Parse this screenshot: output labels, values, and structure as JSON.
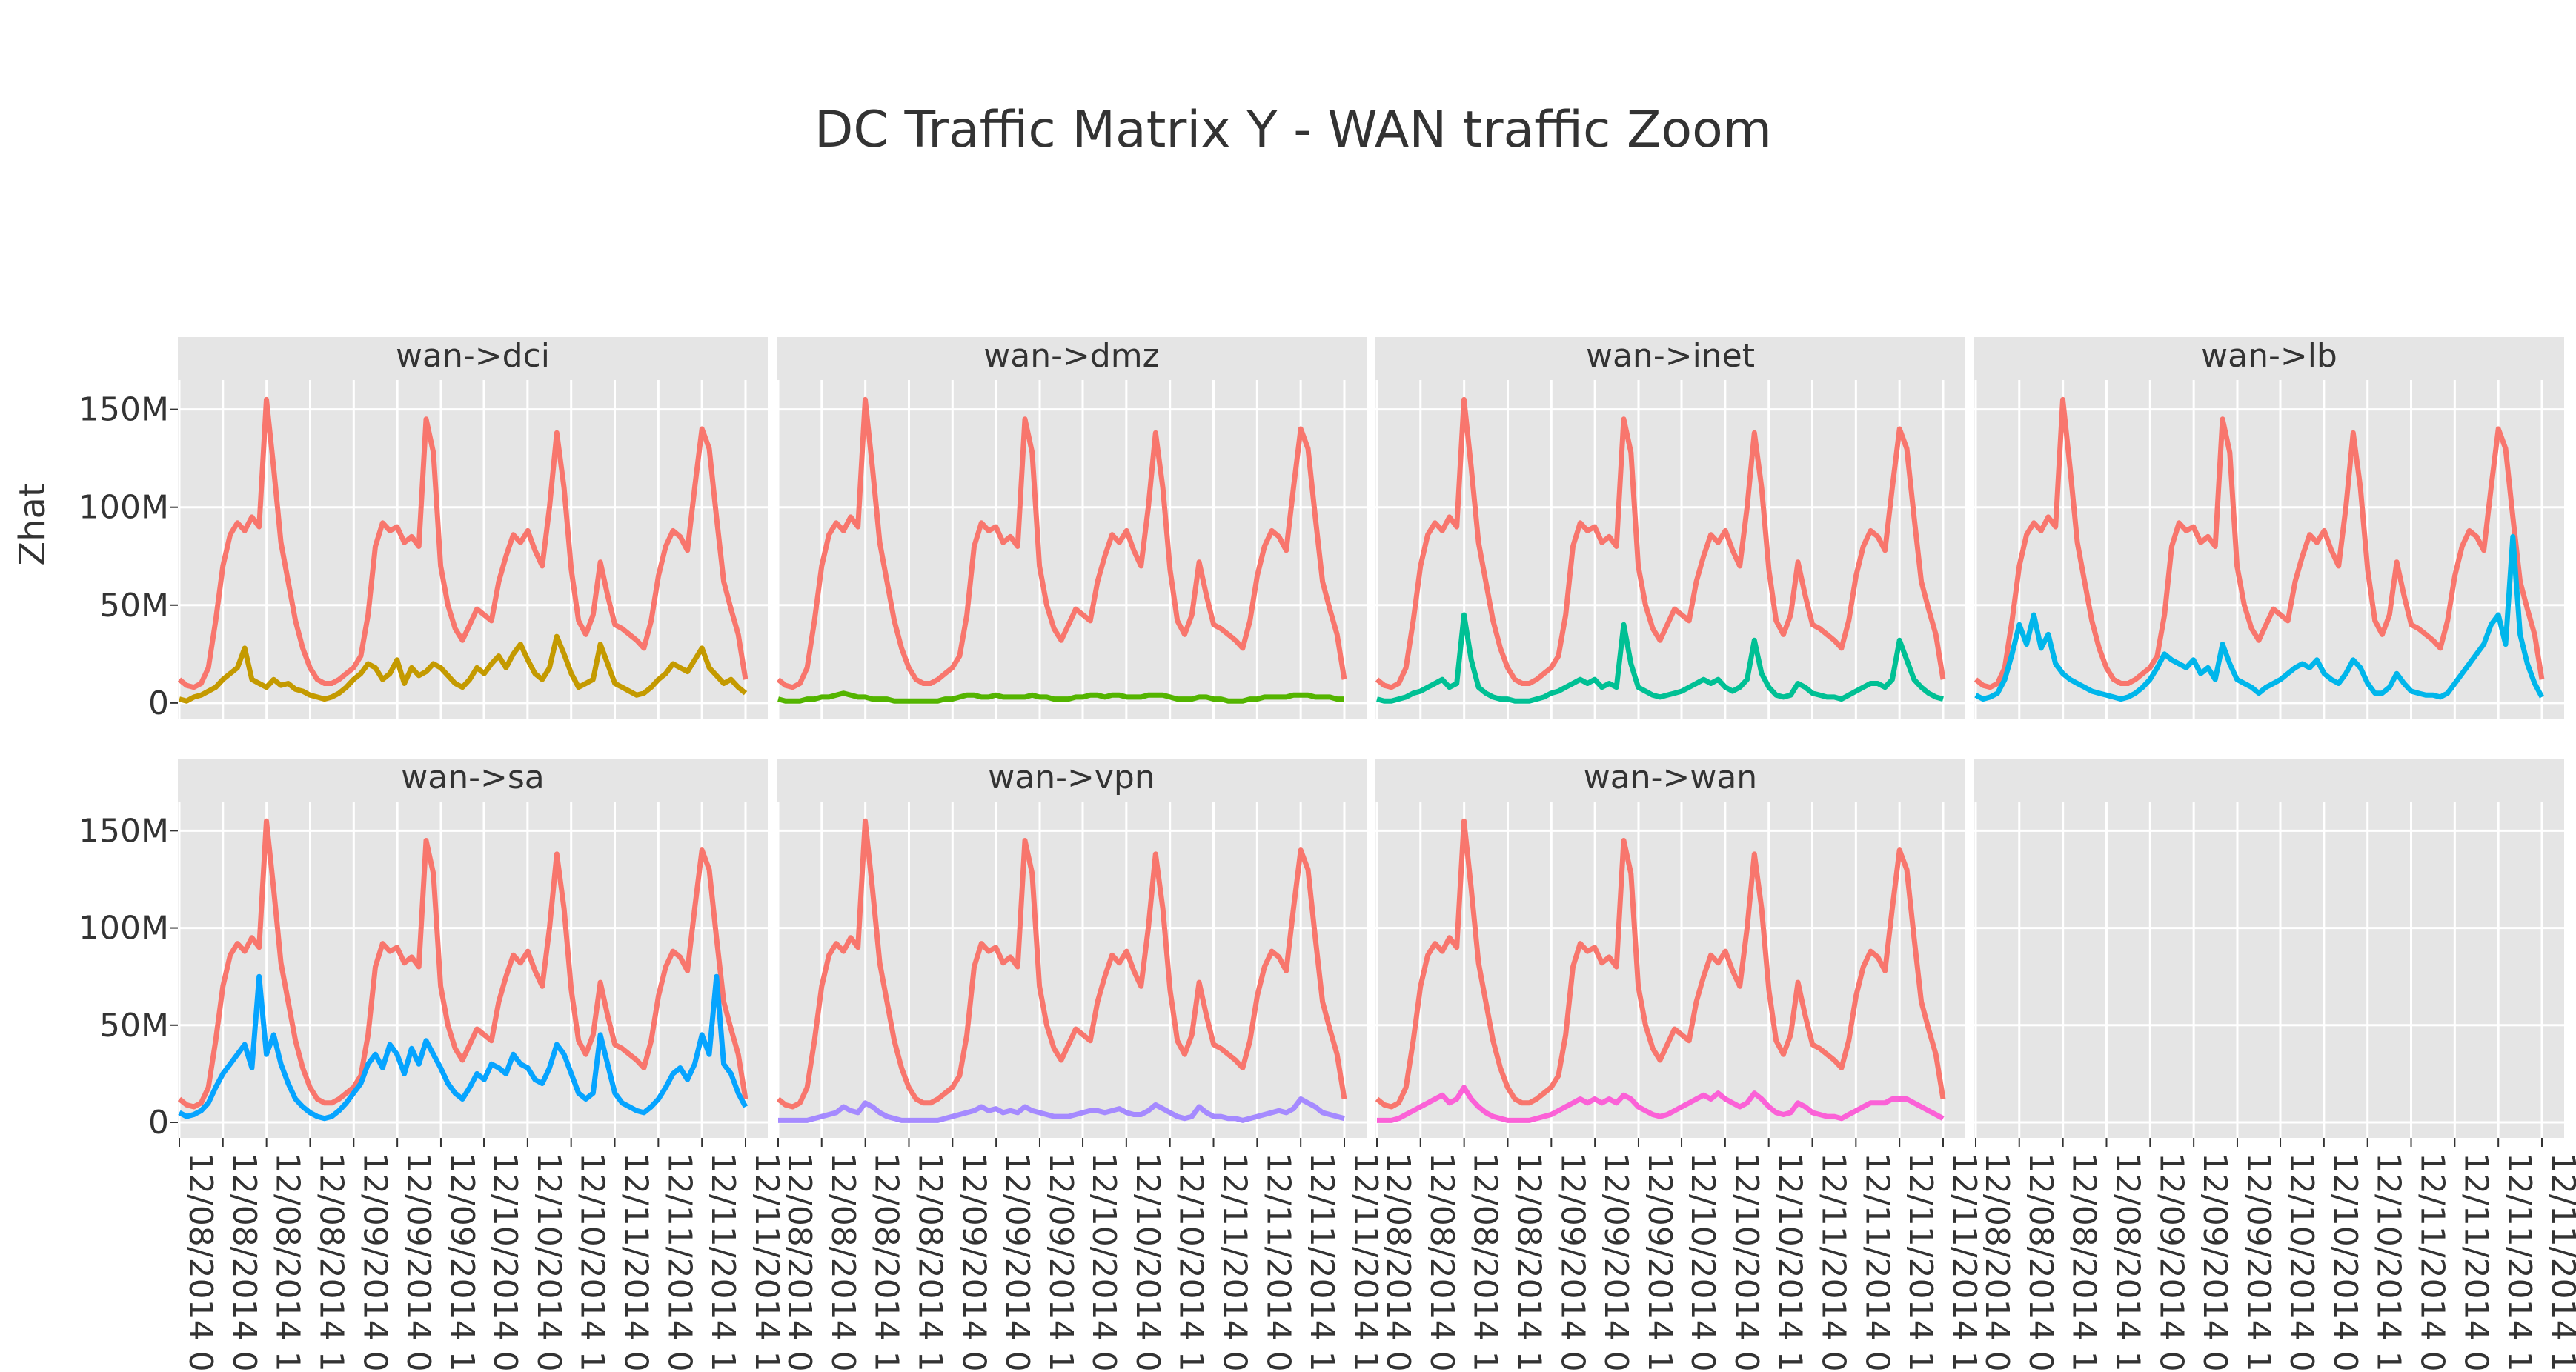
{
  "chart_data": {
    "type": "line",
    "title": "DC Traffic Matrix Y - WAN traffic Zoom",
    "xlabel": "",
    "ylabel": "Zhat",
    "ylim": [
      -8000000,
      165000000
    ],
    "ytick_values": [
      0,
      50000000,
      100000000,
      150000000
    ],
    "ytick_labels": [
      "0",
      "50M",
      "100M",
      "150M"
    ],
    "xtick_labels": [
      "12/08/2014 0",
      "12/08/2014 0",
      "12/08/2014 1",
      "12/08/2014 1",
      "12/09/2014 0",
      "12/09/2014 0",
      "12/09/2014 1",
      "12/10/2014 0",
      "12/10/2014 0",
      "12/10/2014 1",
      "12/11/2014 0",
      "12/11/2014 0",
      "12/11/2014 1",
      "12/11/2014 1"
    ],
    "x_start": "12/08/2014 00:00",
    "x_step": "1 hour",
    "background_series": {
      "name": "wan",
      "color": "#F8766D",
      "values": [
        12,
        9,
        8,
        10,
        18,
        42,
        70,
        86,
        92,
        88,
        95,
        90,
        155,
        120,
        82,
        62,
        42,
        28,
        18,
        12,
        10,
        10,
        12,
        15,
        18,
        24,
        45,
        80,
        92,
        88,
        90,
        82,
        85,
        80,
        145,
        128,
        70,
        50,
        38,
        32,
        40,
        48,
        45,
        42,
        62,
        75,
        86,
        82,
        88,
        78,
        70,
        100,
        138,
        110,
        68,
        42,
        35,
        45,
        72,
        55,
        40,
        38,
        35,
        32,
        28,
        42,
        65,
        80,
        88,
        85,
        78,
        110,
        140,
        130,
        95,
        62,
        48,
        35,
        12
      ]
    },
    "panels": [
      {
        "name": "wan->dci",
        "color": "#C49A00",
        "values": [
          2,
          1,
          3,
          4,
          6,
          8,
          12,
          15,
          18,
          28,
          12,
          10,
          8,
          12,
          9,
          10,
          7,
          6,
          4,
          3,
          2,
          3,
          5,
          8,
          12,
          15,
          20,
          18,
          12,
          15,
          22,
          10,
          18,
          14,
          16,
          20,
          18,
          14,
          10,
          8,
          12,
          18,
          15,
          20,
          24,
          18,
          25,
          30,
          22,
          15,
          12,
          18,
          34,
          25,
          15,
          8,
          10,
          12,
          30,
          20,
          10,
          8,
          6,
          4,
          5,
          8,
          12,
          15,
          20,
          18,
          16,
          22,
          28,
          18,
          14,
          10,
          12,
          8,
          5
        ]
      },
      {
        "name": "wan->dmz",
        "color": "#53B400",
        "values": [
          2,
          1,
          1,
          1,
          2,
          2,
          3,
          3,
          4,
          5,
          4,
          3,
          3,
          2,
          2,
          2,
          1,
          1,
          1,
          1,
          1,
          1,
          1,
          2,
          2,
          3,
          4,
          4,
          3,
          3,
          4,
          3,
          3,
          3,
          3,
          4,
          3,
          3,
          2,
          2,
          2,
          3,
          3,
          4,
          4,
          3,
          4,
          4,
          3,
          3,
          3,
          4,
          4,
          4,
          3,
          2,
          2,
          2,
          3,
          3,
          2,
          2,
          1,
          1,
          1,
          2,
          2,
          3,
          3,
          3,
          3,
          4,
          4,
          4,
          3,
          3,
          3,
          2,
          2
        ]
      },
      {
        "name": "wan->inet",
        "color": "#00C094",
        "values": [
          2,
          1,
          1,
          2,
          3,
          5,
          6,
          8,
          10,
          12,
          8,
          10,
          45,
          22,
          8,
          5,
          3,
          2,
          2,
          1,
          1,
          1,
          2,
          3,
          5,
          6,
          8,
          10,
          12,
          10,
          12,
          8,
          10,
          8,
          40,
          20,
          8,
          6,
          4,
          3,
          4,
          5,
          6,
          8,
          10,
          12,
          10,
          12,
          8,
          6,
          8,
          12,
          32,
          15,
          8,
          4,
          3,
          4,
          10,
          8,
          5,
          4,
          3,
          3,
          2,
          4,
          6,
          8,
          10,
          10,
          8,
          12,
          32,
          22,
          12,
          8,
          5,
          3,
          2
        ]
      },
      {
        "name": "wan->lb",
        "color": "#00B6EB",
        "values": [
          4,
          2,
          3,
          5,
          12,
          25,
          40,
          30,
          45,
          28,
          35,
          20,
          15,
          12,
          10,
          8,
          6,
          5,
          4,
          3,
          2,
          3,
          5,
          8,
          12,
          18,
          25,
          22,
          20,
          18,
          22,
          15,
          18,
          12,
          30,
          20,
          12,
          10,
          8,
          5,
          8,
          10,
          12,
          15,
          18,
          20,
          18,
          22,
          15,
          12,
          10,
          15,
          22,
          18,
          10,
          5,
          5,
          8,
          15,
          10,
          6,
          5,
          4,
          4,
          3,
          5,
          10,
          15,
          20,
          25,
          30,
          40,
          45,
          30,
          85,
          35,
          20,
          10,
          3
        ]
      },
      {
        "name": "wan->sa",
        "color": "#06A4FF",
        "values": [
          5,
          3,
          4,
          6,
          10,
          18,
          25,
          30,
          35,
          40,
          28,
          75,
          35,
          45,
          30,
          20,
          12,
          8,
          5,
          3,
          2,
          3,
          6,
          10,
          15,
          20,
          30,
          35,
          28,
          40,
          35,
          25,
          38,
          30,
          42,
          35,
          28,
          20,
          15,
          12,
          18,
          25,
          22,
          30,
          28,
          25,
          35,
          30,
          28,
          22,
          20,
          28,
          40,
          35,
          25,
          15,
          12,
          15,
          45,
          30,
          15,
          10,
          8,
          6,
          5,
          8,
          12,
          18,
          25,
          28,
          22,
          30,
          45,
          35,
          75,
          30,
          25,
          15,
          8
        ]
      },
      {
        "name": "wan->vpn",
        "color": "#A58AFF",
        "values": [
          1,
          1,
          1,
          1,
          1,
          2,
          3,
          4,
          5,
          8,
          6,
          5,
          10,
          8,
          5,
          3,
          2,
          1,
          1,
          1,
          1,
          1,
          1,
          2,
          3,
          4,
          5,
          6,
          8,
          6,
          7,
          5,
          6,
          5,
          8,
          6,
          5,
          4,
          3,
          3,
          3,
          4,
          5,
          6,
          6,
          5,
          6,
          7,
          5,
          4,
          4,
          6,
          9,
          7,
          5,
          3,
          2,
          3,
          8,
          5,
          3,
          3,
          2,
          2,
          1,
          2,
          3,
          4,
          5,
          6,
          5,
          7,
          12,
          10,
          8,
          5,
          4,
          3,
          2
        ]
      },
      {
        "name": "wan->wan",
        "color": "#FB61D7",
        "values": [
          1,
          1,
          1,
          2,
          4,
          6,
          8,
          10,
          12,
          14,
          10,
          12,
          18,
          12,
          8,
          5,
          3,
          2,
          1,
          1,
          1,
          1,
          2,
          3,
          4,
          6,
          8,
          10,
          12,
          10,
          12,
          10,
          12,
          10,
          14,
          12,
          8,
          6,
          4,
          3,
          4,
          6,
          8,
          10,
          12,
          14,
          12,
          15,
          12,
          10,
          8,
          10,
          15,
          12,
          8,
          5,
          4,
          5,
          10,
          8,
          5,
          4,
          3,
          3,
          2,
          4,
          6,
          8,
          10,
          10,
          10,
          12,
          12,
          12,
          10,
          8,
          6,
          4,
          2
        ]
      }
    ],
    "y_unit_multiplier": 1000000,
    "grid": true,
    "legend": "none"
  }
}
